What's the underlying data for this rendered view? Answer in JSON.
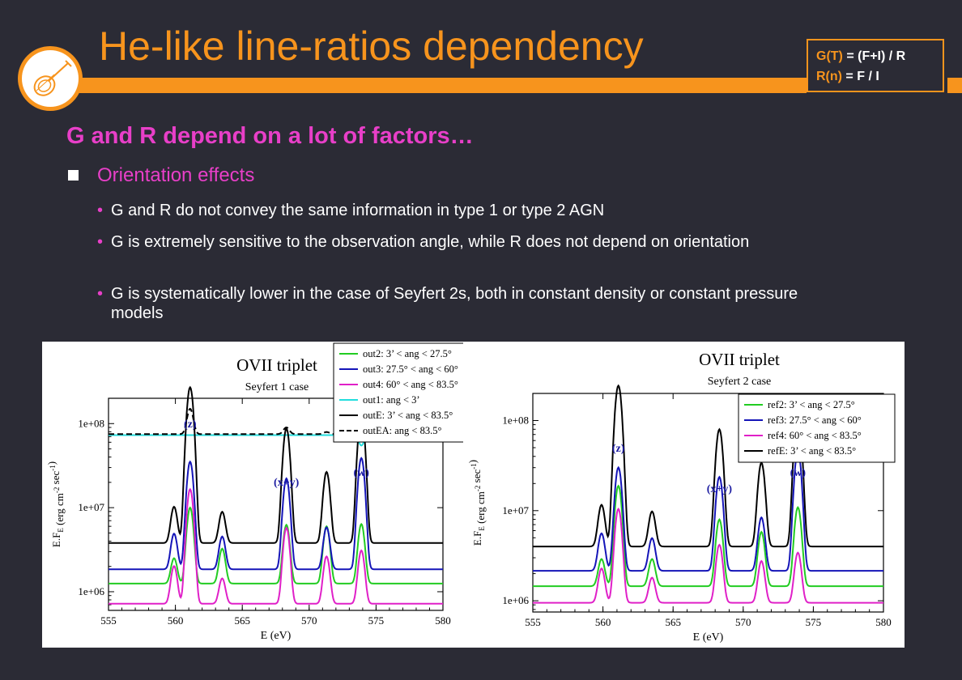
{
  "title": "He-like line-ratios dependency",
  "formula": {
    "g_label": "G(T)",
    "g_expr": " = (F+I) / R",
    "r_label": "R(n)",
    "r_expr": " =  F / I"
  },
  "heading": "G and R depend on a lot of factors…",
  "subheading": "Orientation effects",
  "bullet_char": "•",
  "bullets": [
    "G and R do not convey the same information in type 1 or type 2 AGN",
    "G is extremely sensitive to the observation angle, while R does not depend on orientation",
    "G is systematically lower in the case of Seyfert 2s, both in constant density or constant pressure models"
  ],
  "chart_data": [
    {
      "type": "line",
      "title": "OVII  triplet",
      "subtitle": "Seyfert 1 case",
      "xlabel": "E (eV)",
      "ylabel": "E.F",
      "ylabel_sub": "E",
      "ylabel_unit": " (erg cm",
      "ylabel_exp1": "-2",
      "ylabel_unit2": " sec",
      "ylabel_exp2": "-1",
      "ylabel_close": ")",
      "xlim": [
        555,
        580
      ],
      "ylim": [
        600000,
        200000000
      ],
      "yscale": "log",
      "xticks": [
        "555",
        "560",
        "565",
        "570",
        "575",
        "580"
      ],
      "yticks": [
        "1e+06",
        "1e+07",
        "1e+08"
      ],
      "annotations": [
        {
          "text": "(z)",
          "x": 561.1
        },
        {
          "text": "(x+y)",
          "x": 568.3
        },
        {
          "text": "(w)",
          "x": 573.9
        }
      ],
      "series": [
        {
          "name": "out2: 3’ < ang < 27.5°",
          "color": "#22cc22",
          "dash": false,
          "base": 1250000,
          "peaks": [
            1,
            7,
            1.6,
            4,
            3.8,
            2.3,
            4.1
          ]
        },
        {
          "name": "out3: 27.5° < ang < 60°",
          "color": "#1515b8",
          "dash": false,
          "base": 1850000,
          "peaks": [
            1.65,
            18,
            1.45,
            11,
            2.15,
            1.8,
            20
          ]
        },
        {
          "name": "out4: 60° < ang < 83.5°",
          "color": "#e020c8",
          "dash": false,
          "base": 720000,
          "peaks": [
            1.8,
            22,
            1,
            7,
            2.65,
            1.2,
            3.3
          ]
        },
        {
          "name": "out1: ang < 3’",
          "color": "#22dddd",
          "dash": false,
          "base": 73000000,
          "peaks": [
            0,
            0,
            0,
            0,
            0,
            0,
            -0.25
          ]
        },
        {
          "name": "outE: 3’ < ang < 83.5°",
          "color": "#000000",
          "dash": false,
          "base": 3800000,
          "peaks": [
            1.7,
            70,
            1.35,
            22,
            6,
            7.5,
            33
          ]
        },
        {
          "name": "outEA: ang < 83.5°",
          "color": "#000000",
          "dash": true,
          "base": 75000000,
          "peaks": [
            0,
            1,
            0,
            0.2,
            0.06,
            0.04,
            0.22
          ]
        }
      ]
    },
    {
      "type": "line",
      "title": "OVII  triplet",
      "subtitle": "Seyfert 2 case",
      "xlabel": "E (eV)",
      "ylabel": "E.F",
      "ylabel_sub": "E",
      "ylabel_unit": " (erg cm",
      "ylabel_exp1": "-2",
      "ylabel_unit2": " sec",
      "ylabel_exp2": "-1",
      "ylabel_close": ")",
      "xlim": [
        555,
        580
      ],
      "ylim": [
        750000,
        200000000
      ],
      "yscale": "log",
      "xticks": [
        "555",
        "560",
        "565",
        "570",
        "575",
        "580"
      ],
      "yticks": [
        "1e+06",
        "1e+07",
        "1e+08"
      ],
      "annotations": [
        {
          "text": "(z)",
          "x": 561.1
        },
        {
          "text": "(x+y)",
          "x": 568.3
        },
        {
          "text": "(w)",
          "x": 573.9
        }
      ],
      "series": [
        {
          "name": "ref2:  3’ < ang < 27.5°",
          "color": "#22cc22",
          "dash": false,
          "base": 1450000,
          "peaks": [
            1,
            12,
            1,
            4.5,
            3,
            2,
            6.5
          ]
        },
        {
          "name": "ref3: 27.5° < ang < 60°",
          "color": "#1515b8",
          "dash": false,
          "base": 2150000,
          "peaks": [
            1.6,
            13,
            1.3,
            10,
            2.9,
            2.4,
            20.5
          ]
        },
        {
          "name": "ref4: 60° < ang < 83.5°",
          "color": "#e020c8",
          "dash": false,
          "base": 950000,
          "peaks": [
            1.4,
            10,
            0.9,
            3.4,
            1.9,
            1.1,
            2.6
          ]
        },
        {
          "name": "refE:  3’ <  ang < 83.5°",
          "color": "#000000",
          "dash": false,
          "base": 4000000,
          "peaks": [
            1.9,
            60,
            1.45,
            19,
            7.5,
            7.5,
            30
          ]
        }
      ]
    }
  ]
}
